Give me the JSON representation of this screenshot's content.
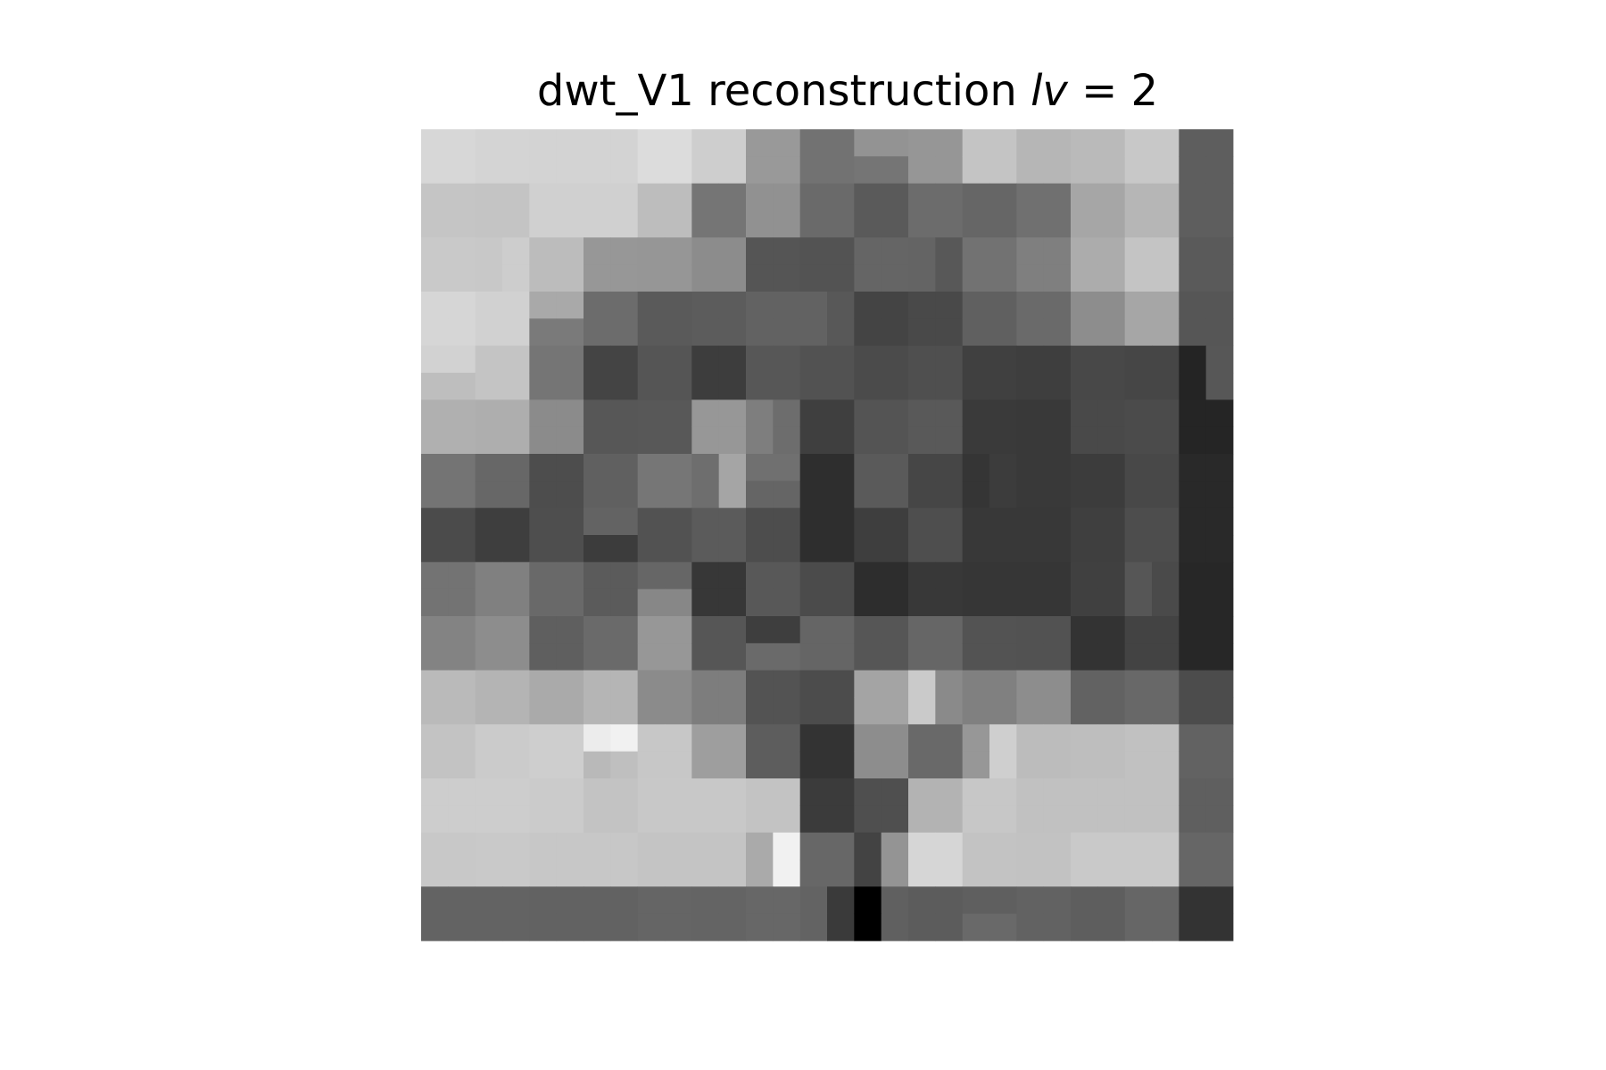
{
  "chart_data": {
    "type": "heatmap",
    "title": {
      "prefix": "dwt_V1 reconstruction ",
      "var": "lv",
      "suffix": " = 2"
    },
    "colormap": "gray",
    "axes_visible": false,
    "grid": false,
    "rows": 15,
    "cols": 15,
    "subcells": [
      [
        [
          215,
          215,
          215,
          215
        ],
        [
          212,
          212,
          212,
          212
        ],
        [
          211,
          211,
          211,
          211
        ],
        [
          211,
          211,
          211,
          211
        ],
        [
          220,
          220,
          220,
          220
        ],
        [
          206,
          206,
          206,
          206
        ],
        [
          153,
          153,
          153,
          153
        ],
        [
          114,
          114,
          114,
          114
        ],
        [
          147,
          147,
          117,
          117
        ],
        [
          150,
          150,
          150,
          150
        ],
        [
          196,
          196,
          196,
          196
        ],
        [
          182,
          182,
          182,
          182
        ],
        [
          186,
          186,
          186,
          186
        ],
        [
          200,
          200,
          200,
          200
        ],
        [
          94,
          94,
          94,
          94
        ]
      ],
      [
        [
          197,
          197,
          197,
          197
        ],
        [
          196,
          196,
          196,
          196
        ],
        [
          208,
          208,
          208,
          208
        ],
        [
          208,
          208,
          208,
          208
        ],
        [
          189,
          189,
          189,
          189
        ],
        [
          117,
          117,
          117,
          117
        ],
        [
          145,
          145,
          145,
          145
        ],
        [
          106,
          106,
          106,
          106
        ],
        [
          90,
          90,
          90,
          90
        ],
        [
          108,
          108,
          108,
          108
        ],
        [
          102,
          102,
          102,
          102
        ],
        [
          112,
          112,
          112,
          112
        ],
        [
          166,
          166,
          166,
          166
        ],
        [
          182,
          182,
          182,
          182
        ],
        [
          94,
          94,
          94,
          94
        ]
      ],
      [
        [
          201,
          201,
          201,
          201
        ],
        [
          200,
          205,
          200,
          205
        ],
        [
          188,
          188,
          188,
          188
        ],
        [
          151,
          151,
          151,
          151
        ],
        [
          150,
          150,
          150,
          150
        ],
        [
          140,
          140,
          140,
          140
        ],
        [
          85,
          85,
          85,
          85
        ],
        [
          83,
          83,
          83,
          83
        ],
        [
          101,
          101,
          101,
          101
        ],
        [
          100,
          88,
          100,
          88
        ],
        [
          114,
          114,
          114,
          114
        ],
        [
          127,
          127,
          127,
          127
        ],
        [
          172,
          172,
          172,
          172
        ],
        [
          196,
          196,
          196,
          196
        ],
        [
          90,
          90,
          90,
          90
        ]
      ],
      [
        [
          214,
          214,
          214,
          214
        ],
        [
          209,
          209,
          209,
          209
        ],
        [
          169,
          169,
          122,
          122
        ],
        [
          108,
          108,
          108,
          108
        ],
        [
          90,
          90,
          90,
          90
        ],
        [
          92,
          92,
          92,
          92
        ],
        [
          98,
          98,
          98,
          98
        ],
        [
          98,
          88,
          98,
          88
        ],
        [
          68,
          68,
          68,
          68
        ],
        [
          73,
          73,
          73,
          73
        ],
        [
          96,
          96,
          96,
          96
        ],
        [
          106,
          106,
          106,
          106
        ],
        [
          141,
          141,
          141,
          141
        ],
        [
          166,
          166,
          166,
          166
        ],
        [
          86,
          86,
          86,
          86
        ]
      ],
      [
        [
          210,
          210,
          190,
          190
        ],
        [
          196,
          196,
          196,
          196
        ],
        [
          117,
          117,
          117,
          117
        ],
        [
          68,
          68,
          68,
          68
        ],
        [
          85,
          85,
          85,
          85
        ],
        [
          61,
          61,
          61,
          61
        ],
        [
          87,
          87,
          87,
          87
        ],
        [
          82,
          82,
          82,
          82
        ],
        [
          75,
          75,
          75,
          75
        ],
        [
          79,
          79,
          79,
          79
        ],
        [
          64,
          64,
          64,
          64
        ],
        [
          62,
          62,
          62,
          62
        ],
        [
          72,
          72,
          72,
          72
        ],
        [
          70,
          70,
          70,
          70
        ],
        [
          36,
          87,
          36,
          87
        ]
      ],
      [
        [
          176,
          176,
          176,
          176
        ],
        [
          174,
          174,
          174,
          174
        ],
        [
          139,
          139,
          139,
          139
        ],
        [
          87,
          87,
          87,
          87
        ],
        [
          88,
          88,
          88,
          88
        ],
        [
          151,
          151,
          151,
          151
        ],
        [
          126,
          109,
          126,
          109
        ],
        [
          63,
          63,
          63,
          63
        ],
        [
          84,
          84,
          84,
          84
        ],
        [
          89,
          89,
          89,
          89
        ],
        [
          58,
          58,
          58,
          58
        ],
        [
          57,
          57,
          57,
          57
        ],
        [
          73,
          73,
          73,
          73
        ],
        [
          75,
          75,
          75,
          75
        ],
        [
          37,
          37,
          37,
          37
        ]
      ],
      [
        [
          116,
          116,
          116,
          116
        ],
        [
          103,
          103,
          103,
          103
        ],
        [
          77,
          77,
          77,
          77
        ],
        [
          96,
          96,
          96,
          96
        ],
        [
          118,
          118,
          118,
          118
        ],
        [
          110,
          165,
          110,
          165
        ],
        [
          112,
          112,
          101,
          101
        ],
        [
          46,
          46,
          46,
          46
        ],
        [
          90,
          90,
          90,
          90
        ],
        [
          70,
          70,
          70,
          70
        ],
        [
          53,
          60,
          53,
          60
        ],
        [
          57,
          57,
          57,
          57
        ],
        [
          60,
          60,
          60,
          60
        ],
        [
          72,
          72,
          72,
          72
        ],
        [
          41,
          41,
          41,
          41
        ]
      ],
      [
        [
          75,
          75,
          75,
          75
        ],
        [
          62,
          62,
          62,
          62
        ],
        [
          78,
          78,
          78,
          78
        ],
        [
          99,
          99,
          60,
          60
        ],
        [
          82,
          82,
          82,
          82
        ],
        [
          91,
          91,
          91,
          91
        ],
        [
          77,
          77,
          77,
          77
        ],
        [
          46,
          46,
          46,
          46
        ],
        [
          62,
          62,
          62,
          62
        ],
        [
          78,
          78,
          78,
          78
        ],
        [
          56,
          56,
          56,
          56
        ],
        [
          56,
          56,
          56,
          56
        ],
        [
          63,
          63,
          63,
          63
        ],
        [
          77,
          77,
          77,
          77
        ],
        [
          41,
          41,
          41,
          41
        ]
      ],
      [
        [
          115,
          115,
          115,
          115
        ],
        [
          128,
          128,
          128,
          128
        ],
        [
          105,
          105,
          105,
          105
        ],
        [
          91,
          91,
          91,
          91
        ],
        [
          102,
          102,
          135,
          135
        ],
        [
          55,
          55,
          55,
          55
        ],
        [
          88,
          88,
          88,
          88
        ],
        [
          75,
          75,
          75,
          75
        ],
        [
          45,
          45,
          45,
          45
        ],
        [
          56,
          56,
          56,
          56
        ],
        [
          54,
          54,
          54,
          54
        ],
        [
          54,
          54,
          54,
          54
        ],
        [
          64,
          64,
          64,
          64
        ],
        [
          86,
          74,
          86,
          74
        ],
        [
          39,
          39,
          39,
          39
        ]
      ],
      [
        [
          131,
          131,
          131,
          131
        ],
        [
          141,
          141,
          141,
          141
        ],
        [
          95,
          95,
          95,
          95
        ],
        [
          106,
          106,
          106,
          106
        ],
        [
          151,
          151,
          151,
          151
        ],
        [
          86,
          86,
          86,
          86
        ],
        [
          62,
          62,
          106,
          106
        ],
        [
          101,
          101,
          101,
          101
        ],
        [
          86,
          86,
          86,
          86
        ],
        [
          102,
          102,
          102,
          102
        ],
        [
          83,
          83,
          83,
          83
        ],
        [
          82,
          82,
          82,
          82
        ],
        [
          51,
          51,
          51,
          51
        ],
        [
          67,
          67,
          67,
          67
        ],
        [
          39,
          39,
          39,
          39
        ]
      ],
      [
        [
          186,
          186,
          186,
          186
        ],
        [
          180,
          180,
          180,
          180
        ],
        [
          170,
          170,
          170,
          170
        ],
        [
          181,
          181,
          181,
          181
        ],
        [
          139,
          139,
          139,
          139
        ],
        [
          125,
          125,
          125,
          125
        ],
        [
          83,
          83,
          83,
          83
        ],
        [
          76,
          76,
          76,
          76
        ],
        [
          164,
          164,
          164,
          164
        ],
        [
          202,
          138,
          202,
          138
        ],
        [
          128,
          128,
          128,
          128
        ],
        [
          141,
          141,
          141,
          141
        ],
        [
          98,
          98,
          98,
          98
        ],
        [
          104,
          104,
          104,
          104
        ],
        [
          76,
          76,
          76,
          76
        ]
      ],
      [
        [
          195,
          195,
          195,
          195
        ],
        [
          203,
          203,
          203,
          203
        ],
        [
          206,
          206,
          206,
          206
        ],
        [
          236,
          241,
          185,
          191
        ],
        [
          199,
          199,
          199,
          199
        ],
        [
          158,
          158,
          158,
          158
        ],
        [
          93,
          93,
          93,
          93
        ],
        [
          51,
          51,
          51,
          51
        ],
        [
          141,
          141,
          141,
          141
        ],
        [
          105,
          105,
          105,
          105
        ],
        [
          151,
          207,
          151,
          207
        ],
        [
          188,
          188,
          188,
          188
        ],
        [
          190,
          190,
          190,
          190
        ],
        [
          193,
          193,
          193,
          193
        ],
        [
          98,
          98,
          98,
          98
        ]
      ],
      [
        [
          205,
          205,
          205,
          205
        ],
        [
          205,
          205,
          205,
          205
        ],
        [
          203,
          203,
          203,
          203
        ],
        [
          195,
          195,
          195,
          195
        ],
        [
          200,
          200,
          200,
          200
        ],
        [
          200,
          200,
          200,
          200
        ],
        [
          195,
          195,
          195,
          195
        ],
        [
          59,
          59,
          59,
          59
        ],
        [
          79,
          79,
          79,
          79
        ],
        [
          179,
          179,
          179,
          179
        ],
        [
          199,
          199,
          199,
          199
        ],
        [
          193,
          193,
          193,
          193
        ],
        [
          193,
          193,
          193,
          193
        ],
        [
          193,
          193,
          193,
          193
        ],
        [
          95,
          95,
          95,
          95
        ]
      ],
      [
        [
          200,
          200,
          200,
          200
        ],
        [
          201,
          201,
          201,
          201
        ],
        [
          199,
          199,
          199,
          199
        ],
        [
          199,
          199,
          199,
          199
        ],
        [
          196,
          196,
          196,
          196
        ],
        [
          196,
          196,
          196,
          196
        ],
        [
          170,
          241,
          170,
          241
        ],
        [
          103,
          103,
          103,
          103
        ],
        [
          67,
          148,
          67,
          148
        ],
        [
          214,
          214,
          214,
          214
        ],
        [
          195,
          195,
          195,
          195
        ],
        [
          194,
          194,
          194,
          194
        ],
        [
          201,
          201,
          201,
          201
        ],
        [
          201,
          201,
          201,
          201
        ],
        [
          102,
          102,
          102,
          102
        ]
      ],
      [
        [
          99,
          99,
          99,
          99
        ],
        [
          99,
          99,
          99,
          99
        ],
        [
          98,
          98,
          98,
          98
        ],
        [
          98,
          98,
          98,
          98
        ],
        [
          101,
          101,
          101,
          101
        ],
        [
          100,
          100,
          100,
          100
        ],
        [
          103,
          103,
          103,
          103
        ],
        [
          99,
          58,
          99,
          58
        ],
        [
          0,
          96,
          0,
          96
        ],
        [
          92,
          92,
          92,
          92
        ],
        [
          95,
          95,
          105,
          105
        ],
        [
          98,
          98,
          98,
          98
        ],
        [
          94,
          94,
          94,
          94
        ],
        [
          102,
          102,
          102,
          102
        ],
        [
          51,
          51,
          51,
          51
        ]
      ]
    ]
  }
}
